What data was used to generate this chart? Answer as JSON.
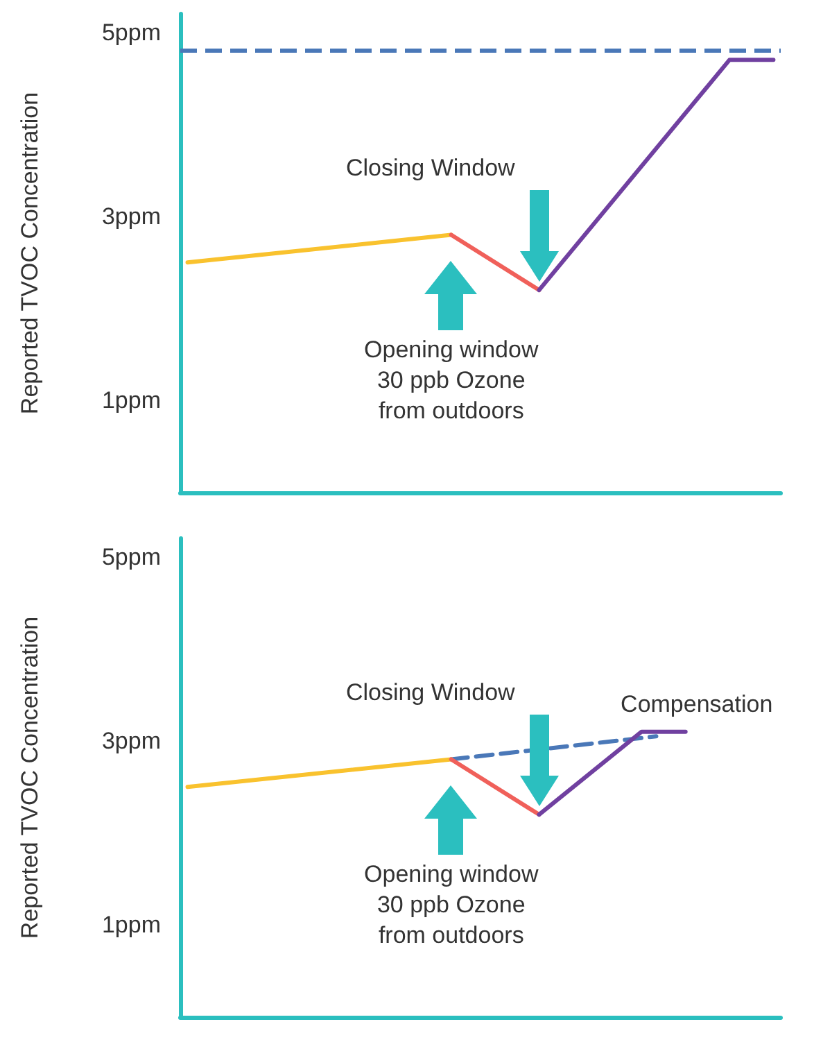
{
  "chart_data": [
    {
      "type": "line",
      "ylabel": "Reported TVOC Concentration",
      "categories": [
        null,
        null,
        null,
        null,
        null,
        null,
        null,
        null,
        null,
        null,
        null,
        null,
        null,
        null,
        null,
        null,
        null,
        null,
        null,
        null,
        null,
        null,
        null,
        null,
        null,
        null,
        null,
        null,
        null,
        null,
        null,
        null,
        null,
        null,
        null,
        null,
        null,
        null,
        null,
        null,
        null
      ],
      "ylim": [
        0,
        5.2
      ],
      "yticks": [
        {
          "value": 1,
          "label": "1ppm"
        },
        {
          "value": 3,
          "label": "3ppm"
        },
        {
          "value": 5,
          "label": "5ppm"
        }
      ],
      "tick_labels": "y",
      "grid": false,
      "marker": "none",
      "series": [
        {
          "color": "#f9c22e",
          "line_style": "solid",
          "values": [
            2.5,
            null,
            null,
            null,
            null,
            null,
            null,
            null,
            null,
            null,
            null,
            null,
            null,
            null,
            null,
            null,
            null,
            null,
            2.8,
            null,
            null,
            null,
            null,
            null,
            null,
            null,
            null,
            null,
            null,
            null,
            null,
            null,
            null,
            null,
            null,
            null,
            null,
            null,
            null,
            null,
            null
          ]
        },
        {
          "color": "#f0605a",
          "line_style": "solid",
          "values": [
            null,
            null,
            null,
            null,
            null,
            null,
            null,
            null,
            null,
            null,
            null,
            null,
            null,
            null,
            null,
            null,
            null,
            null,
            2.8,
            null,
            null,
            null,
            null,
            null,
            2.2,
            null,
            null,
            null,
            null,
            null,
            null,
            null,
            null,
            null,
            null,
            null,
            null,
            null,
            null,
            null,
            null
          ]
        },
        {
          "color": "#7040a0",
          "line_style": "solid",
          "values": [
            null,
            null,
            null,
            null,
            null,
            null,
            null,
            null,
            null,
            null,
            null,
            null,
            null,
            null,
            null,
            null,
            null,
            null,
            null,
            null,
            null,
            null,
            null,
            null,
            2.2,
            null,
            null,
            null,
            null,
            null,
            null,
            null,
            null,
            null,
            null,
            null,
            null,
            4.7,
            null,
            null,
            4.7
          ]
        }
      ],
      "ref_lines": [
        {
          "axis": "y",
          "value": 4.8,
          "color": "#4a78b8",
          "line_style": "dashed"
        }
      ],
      "annotations": [
        "Closing Window",
        "Opening window\n30 ppb Ozone\nfrom outdoors"
      ]
    },
    {
      "type": "line",
      "ylabel": "Reported TVOC Concentration",
      "categories": [
        null,
        null,
        null,
        null,
        null,
        null,
        null,
        null,
        null,
        null,
        null,
        null,
        null,
        null,
        null,
        null,
        null,
        null,
        null,
        null,
        null,
        null,
        null,
        null,
        null,
        null,
        null,
        null,
        null,
        null,
        null,
        null,
        null,
        null,
        null,
        null,
        null,
        null,
        null,
        null,
        null
      ],
      "ylim": [
        0,
        5.2
      ],
      "yticks": [
        {
          "value": 1,
          "label": "1ppm"
        },
        {
          "value": 3,
          "label": "3ppm"
        },
        {
          "value": 5,
          "label": "5ppm"
        }
      ],
      "tick_labels": "y",
      "grid": false,
      "marker": "none",
      "series": [
        {
          "color": "#f9c22e",
          "line_style": "solid",
          "values": [
            2.5,
            null,
            null,
            null,
            null,
            null,
            null,
            null,
            null,
            null,
            null,
            null,
            null,
            null,
            null,
            null,
            null,
            null,
            2.8,
            null,
            null,
            null,
            null,
            null,
            null,
            null,
            null,
            null,
            null,
            null,
            null,
            null,
            null,
            null,
            null,
            null,
            null,
            null,
            null,
            null,
            null
          ]
        },
        {
          "color": "#f0605a",
          "line_style": "solid",
          "values": [
            null,
            null,
            null,
            null,
            null,
            null,
            null,
            null,
            null,
            null,
            null,
            null,
            null,
            null,
            null,
            null,
            null,
            null,
            2.8,
            null,
            null,
            null,
            null,
            null,
            2.2,
            null,
            null,
            null,
            null,
            null,
            null,
            null,
            null,
            null,
            null,
            null,
            null,
            null,
            null,
            null,
            null
          ]
        },
        {
          "color": "#7040a0",
          "line_style": "solid",
          "values": [
            null,
            null,
            null,
            null,
            null,
            null,
            null,
            null,
            null,
            null,
            null,
            null,
            null,
            null,
            null,
            null,
            null,
            null,
            null,
            null,
            null,
            null,
            null,
            null,
            2.2,
            null,
            null,
            null,
            null,
            null,
            null,
            3.1,
            null,
            null,
            3.1,
            null,
            null,
            null,
            null,
            null,
            null
          ]
        },
        {
          "color": "#4a78b8",
          "line_style": "dashed",
          "values": [
            null,
            null,
            null,
            null,
            null,
            null,
            null,
            null,
            null,
            null,
            null,
            null,
            null,
            null,
            null,
            null,
            null,
            null,
            2.8,
            null,
            null,
            null,
            null,
            null,
            null,
            null,
            null,
            null,
            null,
            null,
            null,
            null,
            3.05,
            null,
            null,
            null,
            null,
            null,
            null,
            null,
            null
          ]
        }
      ],
      "annotations": [
        "Closing Window",
        "Opening window\n30 ppb Ozone\nfrom outdoors",
        "Compensation"
      ]
    }
  ]
}
